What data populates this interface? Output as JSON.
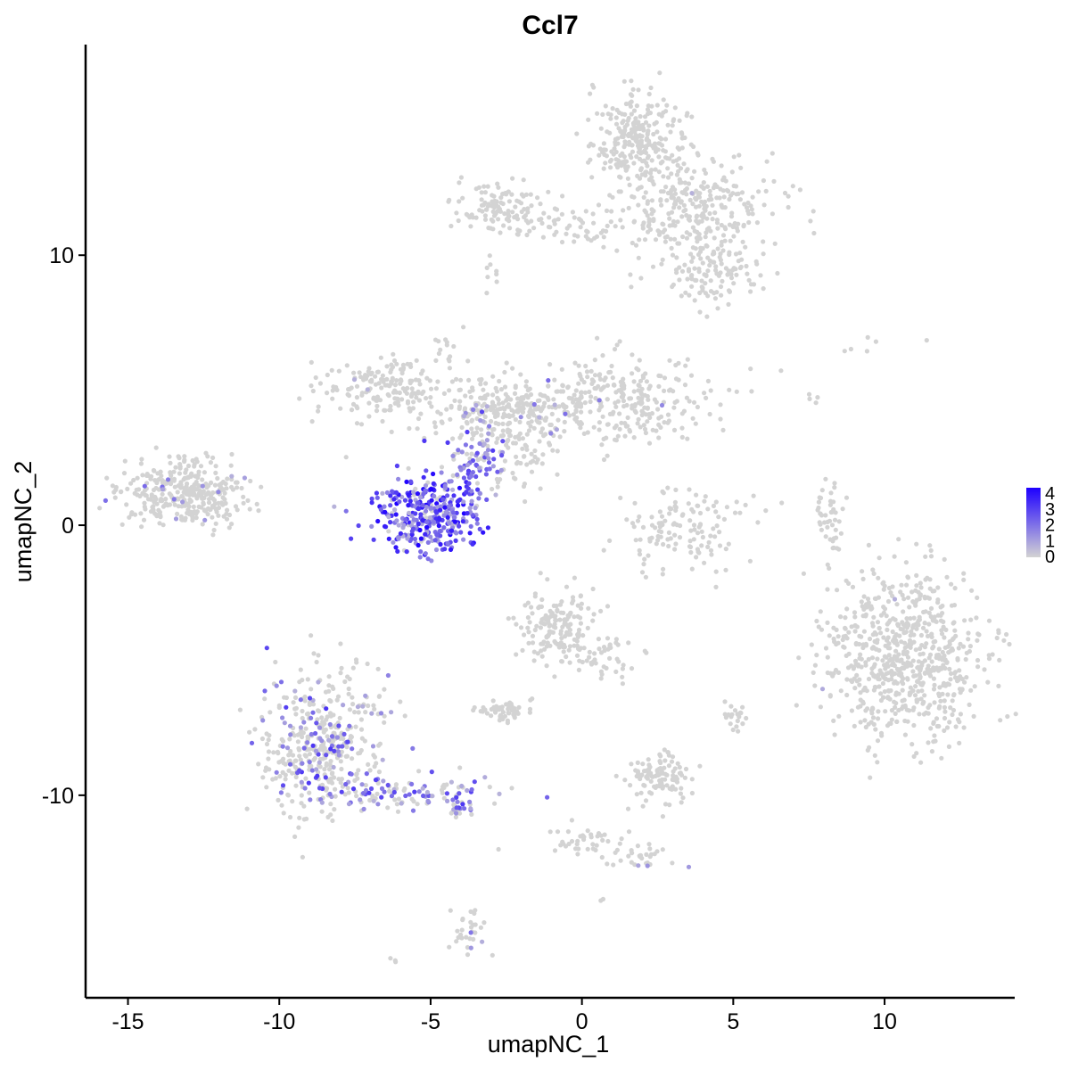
{
  "chart_data": {
    "type": "scatter",
    "title": "Ccl7",
    "xlabel": "umapNC_1",
    "ylabel": "umapNC_2",
    "xlim": [
      -16.4,
      14.3
    ],
    "ylim": [
      -17.5,
      17.8
    ],
    "x_ticks": [
      -15,
      -10,
      -5,
      0,
      5,
      10
    ],
    "y_ticks": [
      -10,
      0,
      10
    ],
    "x_tick_labels": [
      "-15",
      "-10",
      "-5",
      "0",
      "5",
      "10"
    ],
    "y_tick_labels": [
      "-10",
      "0",
      "10"
    ],
    "grid": false,
    "legend": {
      "placement": "right",
      "title": "",
      "min": 0,
      "max": 4,
      "labels": [
        "4",
        "3",
        "2",
        "1",
        "0"
      ],
      "low_color": "#d3d3d3",
      "high_color": "#1e00ff"
    },
    "clusters": [
      {
        "name": "A",
        "cx": -13.1,
        "cy": 1.1,
        "sx": 1.1,
        "sy": 0.55,
        "n": 320,
        "expr": 0.05,
        "range": 2
      },
      {
        "name": "B",
        "cx": -5.0,
        "cy": 0.4,
        "sx": 0.85,
        "sy": 0.7,
        "n": 360,
        "expr": 0.92,
        "range": 4
      },
      {
        "name": "C",
        "cx": -3.6,
        "cy": 2.4,
        "sx": 0.45,
        "sy": 0.7,
        "n": 90,
        "expr": 0.6,
        "range": 3
      },
      {
        "name": "D",
        "cx": -6.5,
        "cy": 5.1,
        "sx": 1.1,
        "sy": 0.55,
        "n": 170,
        "expr": 0.02,
        "range": 1
      },
      {
        "name": "E",
        "cx": -2.7,
        "cy": 4.2,
        "sx": 1.3,
        "sy": 0.6,
        "n": 220,
        "expr": 0.04,
        "range": 2
      },
      {
        "name": "F",
        "cx": 0.9,
        "cy": 4.6,
        "sx": 1.8,
        "sy": 0.8,
        "n": 320,
        "expr": 0.03,
        "range": 2
      },
      {
        "name": "G",
        "cx": 1.9,
        "cy": 14.3,
        "sx": 0.75,
        "sy": 0.9,
        "n": 280,
        "expr": 0.0,
        "range": 0
      },
      {
        "name": "H",
        "cx": 3.8,
        "cy": 11.6,
        "sx": 1.4,
        "sy": 1.0,
        "n": 300,
        "expr": 0.01,
        "range": 1
      },
      {
        "name": "I",
        "cx": -2.6,
        "cy": 11.7,
        "sx": 0.8,
        "sy": 0.45,
        "n": 110,
        "expr": 0.0,
        "range": 0
      },
      {
        "name": "J",
        "cx": -0.5,
        "cy": 11.0,
        "sx": 1.3,
        "sy": 0.3,
        "n": 50,
        "expr": 0.0,
        "range": 0
      },
      {
        "name": "K",
        "cx": 4.4,
        "cy": 9.3,
        "sx": 0.8,
        "sy": 0.6,
        "n": 100,
        "expr": 0.0,
        "range": 0
      },
      {
        "name": "L",
        "cx": 3.3,
        "cy": -0.2,
        "sx": 1.1,
        "sy": 0.75,
        "n": 130,
        "expr": 0.0,
        "range": 0
      },
      {
        "name": "M",
        "cx": 8.2,
        "cy": 0.2,
        "sx": 0.25,
        "sy": 0.6,
        "n": 45,
        "expr": 0.0,
        "range": 0
      },
      {
        "name": "N",
        "cx": 10.7,
        "cy": -4.8,
        "sx": 1.3,
        "sy": 1.6,
        "n": 680,
        "expr": 0.002,
        "range": 1
      },
      {
        "name": "O",
        "cx": -8.6,
        "cy": -8.1,
        "sx": 1.0,
        "sy": 1.3,
        "n": 430,
        "expr": 0.22,
        "range": 3
      },
      {
        "name": "P",
        "cx": -6.0,
        "cy": -9.9,
        "sx": 1.5,
        "sy": 0.35,
        "n": 110,
        "expr": 0.45,
        "range": 3
      },
      {
        "name": "Q",
        "cx": -4.1,
        "cy": -10.4,
        "sx": 0.3,
        "sy": 0.25,
        "n": 30,
        "expr": 0.55,
        "range": 3
      },
      {
        "name": "R",
        "cx": -0.8,
        "cy": -3.8,
        "sx": 0.7,
        "sy": 0.7,
        "n": 170,
        "expr": 0.0,
        "range": 0
      },
      {
        "name": "S",
        "cx": 1.0,
        "cy": -4.9,
        "sx": 0.45,
        "sy": 0.45,
        "n": 35,
        "expr": 0.0,
        "range": 0
      },
      {
        "name": "T",
        "cx": -2.5,
        "cy": -6.9,
        "sx": 0.45,
        "sy": 0.25,
        "n": 55,
        "expr": 0.0,
        "range": 0
      },
      {
        "name": "U",
        "cx": 2.6,
        "cy": -9.4,
        "sx": 0.6,
        "sy": 0.5,
        "n": 110,
        "expr": 0.0,
        "range": 0
      },
      {
        "name": "V",
        "cx": 5.0,
        "cy": -7.1,
        "sx": 0.2,
        "sy": 0.3,
        "n": 20,
        "expr": 0.0,
        "range": 0
      },
      {
        "name": "W",
        "cx": -3.7,
        "cy": -15.0,
        "sx": 0.3,
        "sy": 0.6,
        "n": 30,
        "expr": 0.1,
        "range": 2
      },
      {
        "name": "X",
        "cx": 0.0,
        "cy": -11.7,
        "sx": 0.8,
        "sy": 0.25,
        "n": 40,
        "expr": 0.02,
        "range": 2
      },
      {
        "name": "Y",
        "cx": 2.0,
        "cy": -12.3,
        "sx": 0.6,
        "sy": 0.25,
        "n": 30,
        "expr": 0.05,
        "range": 2
      },
      {
        "name": "Z",
        "cx": -1.9,
        "cy": 2.7,
        "sx": 0.5,
        "sy": 0.8,
        "n": 50,
        "expr": 0.0,
        "range": 0
      },
      {
        "name": "AA",
        "cx": -4.5,
        "cy": 6.5,
        "sx": 0.25,
        "sy": 0.35,
        "n": 15,
        "expr": 0.0,
        "range": 0
      },
      {
        "name": "AB",
        "cx": -12.8,
        "cy": 2.4,
        "sx": 0.5,
        "sy": 0.2,
        "n": 20,
        "expr": 0.0,
        "range": 0
      },
      {
        "name": "AC",
        "cx": 8.3,
        "cy": -4.2,
        "sx": 0.35,
        "sy": 0.3,
        "n": 15,
        "expr": 0.0,
        "range": 0
      },
      {
        "name": "AD",
        "cx": 7.7,
        "cy": 4.7,
        "sx": 0.1,
        "sy": 0.2,
        "n": 4,
        "expr": 0.0,
        "range": 0
      },
      {
        "name": "AE",
        "cx": 9.5,
        "cy": 6.7,
        "sx": 0.5,
        "sy": 0.2,
        "n": 6,
        "expr": 0.0,
        "range": 0
      },
      {
        "name": "AF",
        "cx": -6.2,
        "cy": -16.1,
        "sx": 0.05,
        "sy": 0.05,
        "n": 3,
        "expr": 0.0,
        "range": 0
      },
      {
        "name": "AG",
        "cx": 0.6,
        "cy": -13.9,
        "sx": 0.05,
        "sy": 0.05,
        "n": 2,
        "expr": 0.0,
        "range": 0
      },
      {
        "name": "AH",
        "cx": -3.0,
        "cy": 9.3,
        "sx": 0.2,
        "sy": 0.4,
        "n": 8,
        "expr": 0.0,
        "range": 0
      }
    ]
  }
}
